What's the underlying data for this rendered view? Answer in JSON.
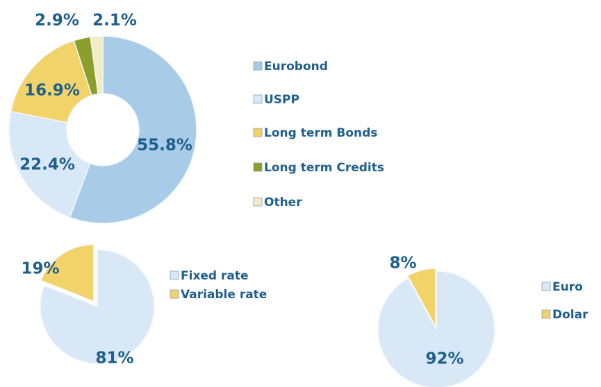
{
  "chart_data": [
    {
      "type": "donut",
      "categories": [
        "Eurobond",
        "USPP",
        "Long term Bonds",
        "Long term Credits",
        "Other"
      ],
      "values": [
        55.8,
        22.4,
        16.9,
        2.9,
        2.1
      ],
      "value_labels": [
        "55.8%",
        "22.4%",
        "16.9%",
        "2.9%",
        "2.1%"
      ],
      "colors": [
        "#a8cbe8",
        "#d8e8f6",
        "#f2d36a",
        "#8c9f2a",
        "#f4ebc6"
      ]
    },
    {
      "type": "pie",
      "categories": [
        "Fixed rate",
        "Variable rate"
      ],
      "values": [
        81,
        19
      ],
      "value_labels": [
        "81%",
        "19%"
      ],
      "colors": [
        "#d8e8f6",
        "#f2d36a"
      ]
    },
    {
      "type": "pie",
      "categories": [
        "Euro",
        "Dolar"
      ],
      "values": [
        92,
        8
      ],
      "value_labels": [
        "92%",
        "8%"
      ],
      "colors": [
        "#d8e8f6",
        "#f2d36a"
      ]
    }
  ]
}
